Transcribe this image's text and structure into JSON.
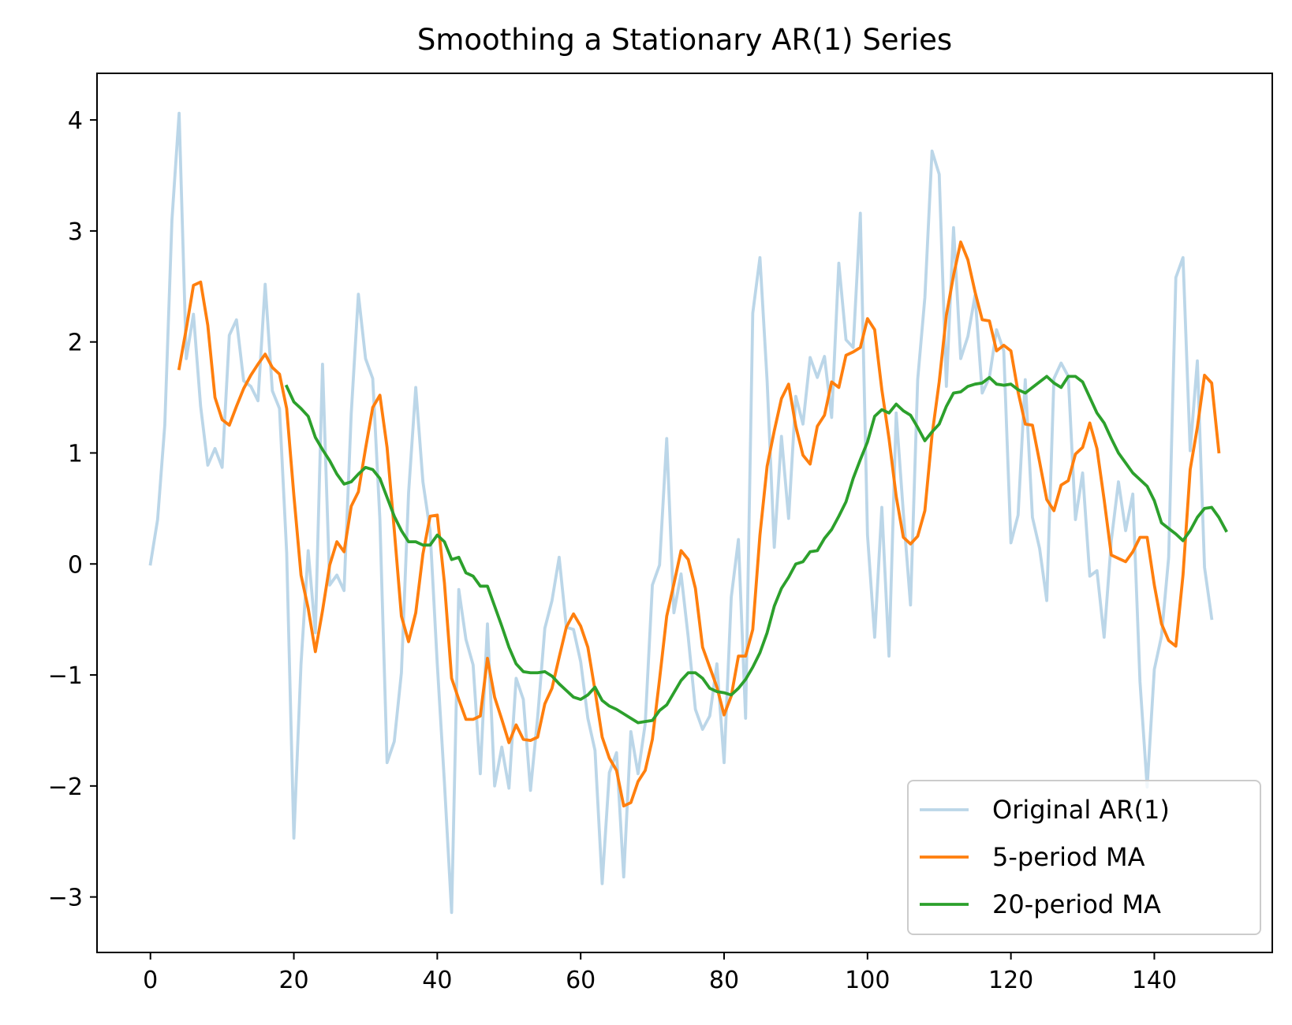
{
  "chart_data": {
    "type": "line",
    "title": "Smoothing a Stationary AR(1) Series",
    "xlabel": "",
    "ylabel": "",
    "xlim": [
      -7.45,
      156.45
    ],
    "ylim": [
      -3.5,
      4.42
    ],
    "xticks": [
      0,
      20,
      40,
      60,
      80,
      100,
      120,
      140
    ],
    "yticks": [
      -3,
      -2,
      -1,
      0,
      1,
      2,
      3,
      4
    ],
    "ytick_labels": [
      "−3",
      "−2",
      "−1",
      "0",
      "1",
      "2",
      "3",
      "4"
    ],
    "legend_position": "lower right",
    "grid": false,
    "series": [
      {
        "name": "Original AR(1)",
        "color": "#1f77b4",
        "opacity": 0.3,
        "x_start": 0,
        "values": [
          0.0,
          0.4,
          1.25,
          3.1,
          4.06,
          1.85,
          2.25,
          1.42,
          0.89,
          1.04,
          0.87,
          2.06,
          2.2,
          1.65,
          1.6,
          1.47,
          2.52,
          1.56,
          1.4,
          0.1,
          -2.47,
          -0.9,
          0.12,
          -0.62,
          1.8,
          -0.19,
          -0.1,
          -0.24,
          1.35,
          2.43,
          1.85,
          1.67,
          0.4,
          -1.79,
          -1.6,
          -0.98,
          0.64,
          1.59,
          0.74,
          0.3,
          -0.9,
          -1.97,
          -3.14,
          -0.23,
          -0.68,
          -0.91,
          -1.89,
          -0.54,
          -2.0,
          -1.65,
          -2.02,
          -1.03,
          -1.22,
          -2.04,
          -1.38,
          -0.58,
          -0.33,
          0.06,
          -0.57,
          -0.59,
          -0.88,
          -1.39,
          -1.68,
          -2.88,
          -1.88,
          -1.7,
          -2.82,
          -1.51,
          -1.89,
          -1.44,
          -0.19,
          -0.01,
          1.13,
          -0.44,
          -0.09,
          -0.66,
          -1.31,
          -1.49,
          -1.37,
          -0.9,
          -1.79,
          -0.3,
          0.22,
          -1.39,
          2.26,
          2.76,
          1.65,
          0.15,
          1.15,
          0.41,
          1.51,
          1.26,
          1.86,
          1.68,
          1.87,
          1.32,
          2.71,
          2.02,
          1.95,
          3.16,
          0.26,
          -0.66,
          0.51,
          -0.83,
          1.36,
          0.46,
          -0.37,
          1.66,
          2.4,
          3.72,
          3.51,
          1.6,
          3.03,
          1.85,
          2.05,
          2.42,
          1.54,
          1.68,
          2.11,
          1.92,
          0.19,
          0.44,
          1.66,
          0.42,
          0.14,
          -0.33,
          1.67,
          1.81,
          1.69,
          0.4,
          0.82,
          -0.11,
          -0.06,
          -0.66,
          0.21,
          0.74,
          0.3,
          0.63,
          -1.06,
          -2.01,
          -0.95,
          -0.65,
          0.06,
          2.58,
          2.76,
          1.02,
          1.83,
          -0.03,
          -0.49
        ]
      },
      {
        "name": "5-period MA",
        "color": "#ff7f0e",
        "opacity": 1,
        "x_start": 4,
        "values": [
          1.76,
          2.12,
          2.51,
          2.54,
          2.15,
          1.5,
          1.3,
          1.25,
          1.42,
          1.58,
          1.7,
          1.8,
          1.89,
          1.77,
          1.71,
          1.4,
          0.62,
          -0.1,
          -0.4,
          -0.79,
          -0.42,
          -0.01,
          0.2,
          0.11,
          0.52,
          0.65,
          1.04,
          1.41,
          1.52,
          1.05,
          0.31,
          -0.47,
          -0.7,
          -0.44,
          0.09,
          0.43,
          0.44,
          -0.17,
          -1.03,
          -1.22,
          -1.4,
          -1.4,
          -1.37,
          -0.85,
          -1.2,
          -1.4,
          -1.61,
          -1.45,
          -1.58,
          -1.59,
          -1.56,
          -1.26,
          -1.12,
          -0.84,
          -0.57,
          -0.45,
          -0.56,
          -0.75,
          -1.14,
          -1.56,
          -1.75,
          -1.86,
          -2.18,
          -2.15,
          -1.96,
          -1.86,
          -1.58,
          -1.04,
          -0.47,
          -0.18,
          0.12,
          0.04,
          -0.22,
          -0.75,
          -0.93,
          -1.11,
          -1.36,
          -1.19,
          -0.83,
          -0.83,
          -0.59,
          0.26,
          0.88,
          1.2,
          1.49,
          1.62,
          1.24,
          0.98,
          0.9,
          1.24,
          1.34,
          1.64,
          1.59,
          1.88,
          1.91,
          1.95,
          2.21,
          2.11,
          1.57,
          1.13,
          0.61,
          0.24,
          0.18,
          0.25,
          0.48,
          1.16,
          1.64,
          2.24,
          2.6,
          2.9,
          2.74,
          2.45,
          2.2,
          2.19,
          1.92,
          1.97,
          1.92,
          1.55,
          1.26,
          1.25,
          0.92,
          0.58,
          0.48,
          0.71,
          0.75,
          0.99,
          1.05,
          1.27,
          1.04,
          0.58,
          0.08,
          0.05,
          0.02,
          0.11,
          0.24,
          0.24,
          -0.19,
          -0.54,
          -0.69,
          -0.74,
          -0.1,
          0.85,
          1.23,
          1.7,
          1.63,
          1.01
        ]
      },
      {
        "name": "20-period MA",
        "color": "#2ca02c",
        "opacity": 1,
        "x_start": 19,
        "values": [
          1.6,
          1.46,
          1.4,
          1.33,
          1.14,
          1.03,
          0.93,
          0.81,
          0.72,
          0.74,
          0.81,
          0.87,
          0.85,
          0.77,
          0.6,
          0.43,
          0.3,
          0.2,
          0.2,
          0.17,
          0.17,
          0.26,
          0.2,
          0.04,
          0.06,
          -0.08,
          -0.11,
          -0.2,
          -0.2,
          -0.38,
          -0.56,
          -0.75,
          -0.9,
          -0.97,
          -0.98,
          -0.98,
          -0.97,
          -1.01,
          -1.08,
          -1.14,
          -1.2,
          -1.22,
          -1.18,
          -1.11,
          -1.23,
          -1.28,
          -1.31,
          -1.35,
          -1.39,
          -1.43,
          -1.42,
          -1.41,
          -1.32,
          -1.27,
          -1.16,
          -1.05,
          -0.98,
          -0.98,
          -1.03,
          -1.12,
          -1.15,
          -1.16,
          -1.18,
          -1.12,
          -1.04,
          -0.93,
          -0.8,
          -0.62,
          -0.38,
          -0.22,
          -0.12,
          0.0,
          0.02,
          0.11,
          0.12,
          0.23,
          0.31,
          0.43,
          0.56,
          0.77,
          0.94,
          1.1,
          1.33,
          1.39,
          1.36,
          1.44,
          1.38,
          1.34,
          1.23,
          1.11,
          1.19,
          1.26,
          1.42,
          1.54,
          1.55,
          1.6,
          1.62,
          1.63,
          1.68,
          1.62,
          1.61,
          1.62,
          1.57,
          1.54,
          1.59,
          1.64,
          1.69,
          1.63,
          1.59,
          1.69,
          1.69,
          1.64,
          1.5,
          1.36,
          1.27,
          1.13,
          1.0,
          0.91,
          0.82,
          0.76,
          0.7,
          0.57,
          0.37,
          0.32,
          0.27,
          0.21,
          0.3,
          0.42,
          0.5,
          0.51,
          0.42,
          0.3
        ]
      }
    ]
  }
}
